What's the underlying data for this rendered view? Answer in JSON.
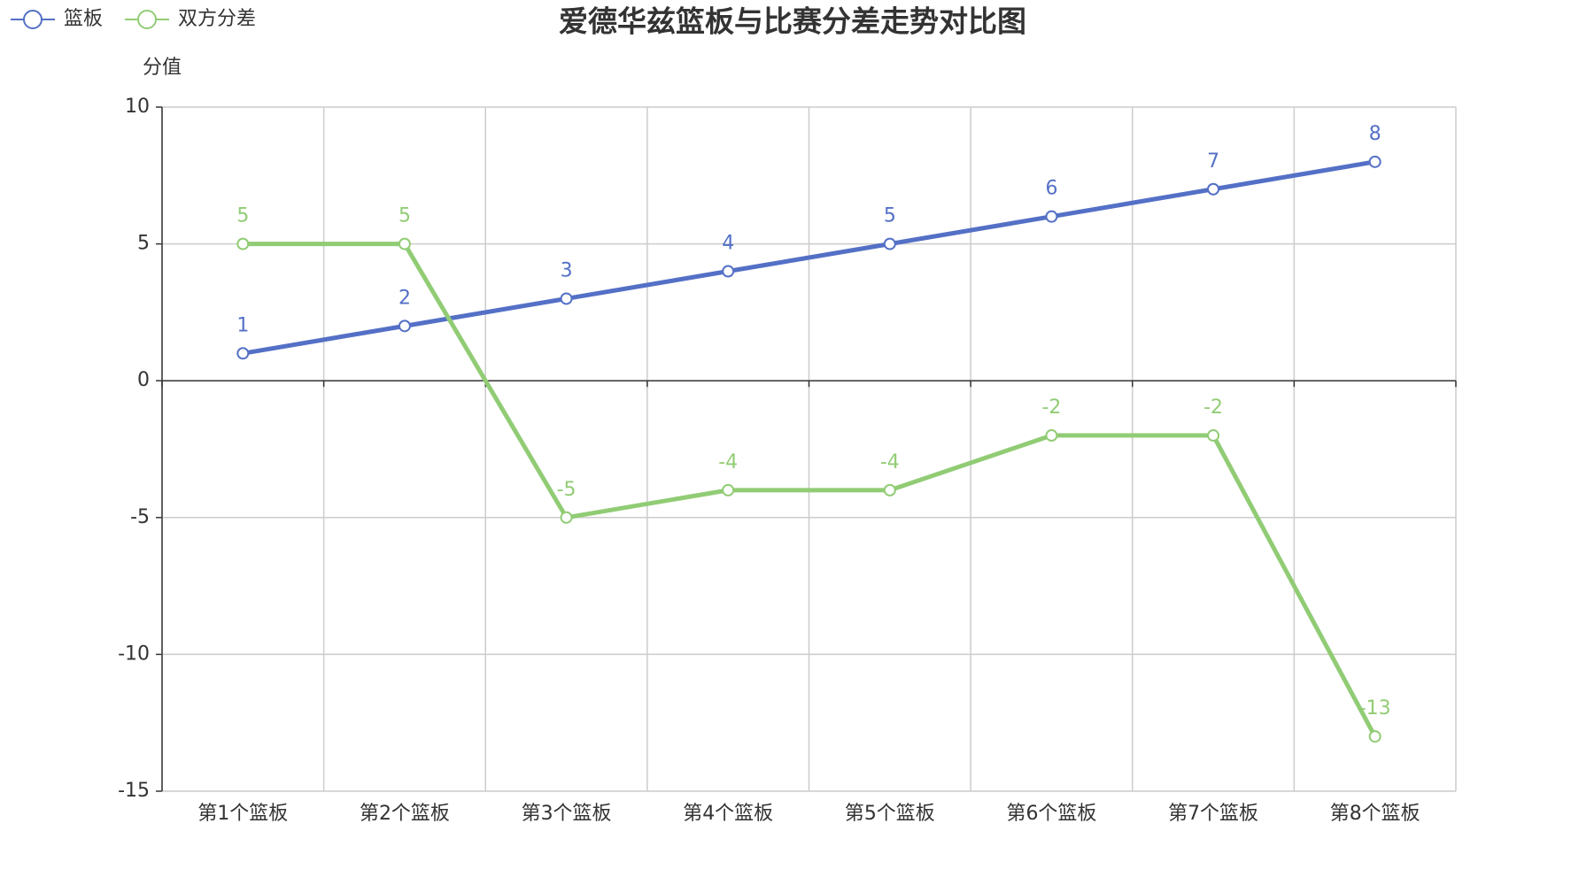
{
  "chart_data": {
    "type": "line",
    "title": "爱德华兹篮板与比赛分差走势对比图",
    "y_label": "分值",
    "categories": [
      "第1个篮板",
      "第2个篮板",
      "第3个篮板",
      "第4个篮板",
      "第5个篮板",
      "第6个篮板",
      "第7个篮板",
      "第8个篮板"
    ],
    "series": [
      {
        "name": "篮板",
        "color": "#5470c6",
        "values": [
          1,
          2,
          3,
          4,
          5,
          6,
          7,
          8
        ]
      },
      {
        "name": "双方分差",
        "color": "#91cc75",
        "values": [
          5,
          5,
          -5,
          -4,
          -4,
          -2,
          -2,
          -13
        ]
      }
    ],
    "ylim": [
      -15,
      10
    ],
    "yticks": [
      -15,
      -10,
      -5,
      0,
      5,
      10
    ],
    "grid": true,
    "legend": "top-left",
    "data_labels": true
  }
}
